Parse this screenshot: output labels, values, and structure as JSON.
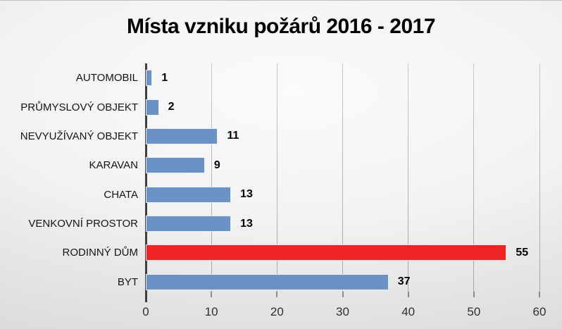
{
  "title": "Místa vzniku požárů 2016 - 2017",
  "chart_data": {
    "type": "bar",
    "orientation": "horizontal",
    "title": "Místa vzniku požárů 2016 - 2017",
    "categories": [
      "AUTOMOBIL",
      "PRŮMYSLOVÝ OBJEKT",
      "NEVYUŽÍVANÝ OBJEKT",
      "KARAVAN",
      "CHATA",
      "VENKOVNÍ PROSTOR",
      "RODINNÝ DŮM",
      "BYT"
    ],
    "values": [
      1,
      2,
      11,
      9,
      13,
      13,
      55,
      37
    ],
    "data_labels": [
      "1",
      "2",
      "11",
      "9",
      "13",
      "13",
      "55",
      "37"
    ],
    "bar_colors": [
      "#6b92c5",
      "#6b92c5",
      "#6b92c5",
      "#6b92c5",
      "#6b92c5",
      "#6b92c5",
      "#ee2424",
      "#6b92c5"
    ],
    "highlighted_category": "RODINNÝ DŮM",
    "xlabel": "",
    "ylabel": "",
    "xlim": [
      0,
      60
    ],
    "x_ticks": [
      0,
      10,
      20,
      30,
      40,
      50,
      60
    ],
    "grid": "vertical",
    "legend": "none"
  },
  "colors": {
    "bar_blue": "#6b92c5",
    "bar_red": "#ee2424",
    "gridline": "#ababab",
    "axis_line": "#3f3f3f",
    "title_text": "#000000",
    "label_text": "#141414",
    "background": "#e8e8e8"
  }
}
